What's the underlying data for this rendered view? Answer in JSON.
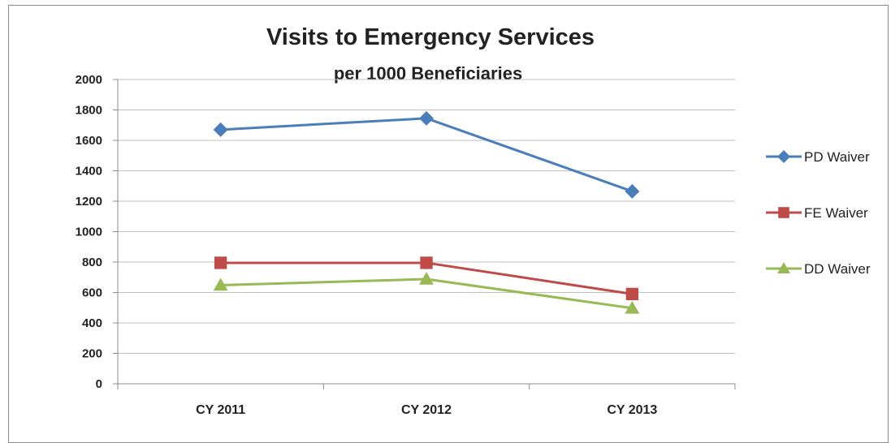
{
  "chart_data": {
    "type": "line",
    "title": "Visits to Emergency Services",
    "subtitle": "per 1000 Beneficiaries",
    "xlabel": "",
    "ylabel": "",
    "categories": [
      "CY 2011",
      "CY 2012",
      "CY 2013"
    ],
    "ylim": [
      0,
      2000
    ],
    "yticks": [
      0,
      200,
      400,
      600,
      800,
      1000,
      1200,
      1400,
      1600,
      1800,
      2000
    ],
    "grid": true,
    "legend_position": "right",
    "series": [
      {
        "name": "PD Waiver",
        "values": [
          1670,
          1745,
          1265
        ],
        "color": "#4a7ebb",
        "marker": "diamond"
      },
      {
        "name": "FE Waiver",
        "values": [
          795,
          795,
          590
        ],
        "color": "#be4b48",
        "marker": "square"
      },
      {
        "name": "DD Waiver",
        "values": [
          648,
          688,
          497
        ],
        "color": "#98b954",
        "marker": "triangle"
      }
    ]
  }
}
